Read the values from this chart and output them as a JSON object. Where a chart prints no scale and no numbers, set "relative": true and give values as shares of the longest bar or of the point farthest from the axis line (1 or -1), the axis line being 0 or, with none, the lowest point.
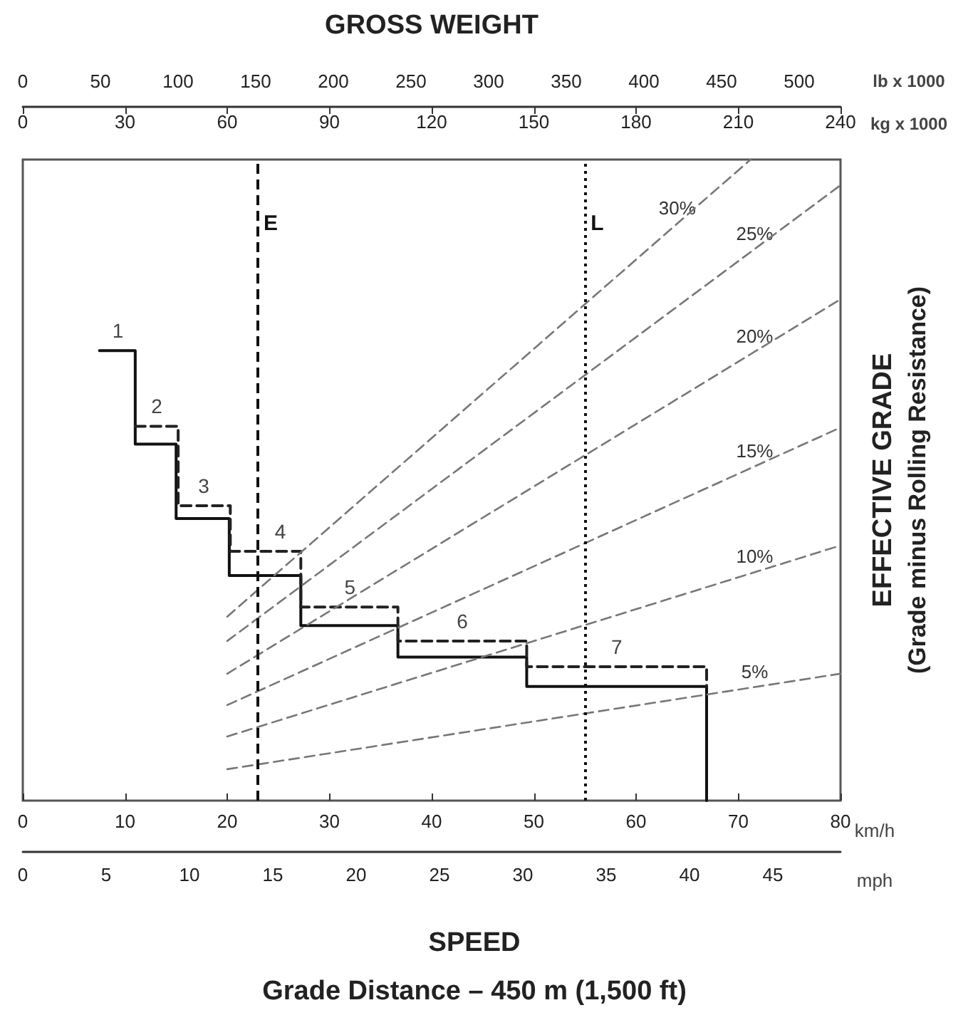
{
  "chart_data": {
    "type": "line",
    "relative": true,
    "ylabel": "EFFECTIVE GRADE",
    "y2label": "(Grade minus Rolling Resistance)",
    "xlabel": "SPEED",
    "xlim": [
      0,
      80
    ],
    "xticks": [
      0,
      10,
      20,
      30,
      40,
      50,
      60,
      70,
      80
    ],
    "x2label": "GROSS WEIGHT",
    "x2lim": [
      0,
      240
    ],
    "x2ticks": [
      0,
      30,
      60,
      90,
      120,
      150,
      180,
      210,
      240
    ],
    "grid": false,
    "legend": false,
    "marker": "none",
    "series": [
      {
        "color": "#111111",
        "line_style": "solid",
        "x": [
          7.5,
          11,
          11,
          15,
          15,
          20.2,
          20.2,
          27.2,
          27.2,
          36.7,
          36.7,
          49.3,
          49.3,
          66.9,
          66.9
        ],
        "values": [
          0.702,
          0.702,
          0.556,
          0.556,
          0.44,
          0.44,
          0.351,
          0.351,
          0.273,
          0.273,
          0.224,
          0.224,
          0.178,
          0.178,
          0
        ]
      },
      {
        "color": "#222222",
        "line_style": "dashed",
        "x": [
          11,
          15.2,
          15.2,
          20.3,
          20.3,
          27.2,
          27.2,
          36.7,
          36.7,
          49.3,
          49.3,
          66.9,
          66.9
        ],
        "values": [
          0.584,
          0.584,
          0.46,
          0.46,
          0.389,
          0.389,
          0.302,
          0.302,
          0.249,
          0.249,
          0.209,
          0.209,
          0.178
        ]
      },
      {
        "name": "5%",
        "color": "#777777",
        "line_style": "dashed",
        "x": [
          20,
          80
        ],
        "values": [
          0.049,
          0.198
        ]
      },
      {
        "name": "10%",
        "color": "#777777",
        "line_style": "dashed",
        "x": [
          20,
          80
        ],
        "values": [
          0.1,
          0.398
        ]
      },
      {
        "name": "15%",
        "color": "#777777",
        "line_style": "dashed",
        "x": [
          20,
          80
        ],
        "values": [
          0.149,
          0.582
        ]
      },
      {
        "name": "20%",
        "color": "#777777",
        "line_style": "dashed",
        "x": [
          20,
          80
        ],
        "values": [
          0.198,
          0.782
        ]
      },
      {
        "name": "25%",
        "color": "#777777",
        "line_style": "dashed",
        "x": [
          20,
          80
        ],
        "values": [
          0.249,
          0.96
        ]
      },
      {
        "name": "30%",
        "color": "#777777",
        "line_style": "dashed",
        "x": [
          20,
          71.2
        ],
        "values": [
          0.287,
          1
        ]
      }
    ],
    "ref_lines": [
      {
        "axis": "x",
        "value": 23,
        "label": "E",
        "color": "#111111",
        "line_style": "dashed"
      },
      {
        "axis": "x",
        "value": 55,
        "label": "L",
        "color": "#111111",
        "line_style": "dotted"
      }
    ],
    "annotations": [
      {
        "text": "1",
        "x": 9.3,
        "y": 0.702
      },
      {
        "text": "2",
        "x": 13.1,
        "y": 0.584
      },
      {
        "text": "3",
        "x": 17.7,
        "y": 0.46
      },
      {
        "text": "4",
        "x": 25.2,
        "y": 0.389
      },
      {
        "text": "5",
        "x": 32,
        "y": 0.302
      },
      {
        "text": "6",
        "x": 43,
        "y": 0.249
      },
      {
        "text": "7",
        "x": 58.1,
        "y": 0.209
      },
      "km/h",
      "mph",
      "kg x 1000",
      "lb x 1000",
      "Grade Distance – 450 m (1,500 ft)",
      "0",
      "5",
      "10",
      "15",
      "20",
      "25",
      "30",
      "35",
      "40",
      "45",
      "0",
      "50",
      "100",
      "150",
      "200",
      "250",
      "300",
      "350",
      "400",
      "450",
      "500"
    ]
  }
}
